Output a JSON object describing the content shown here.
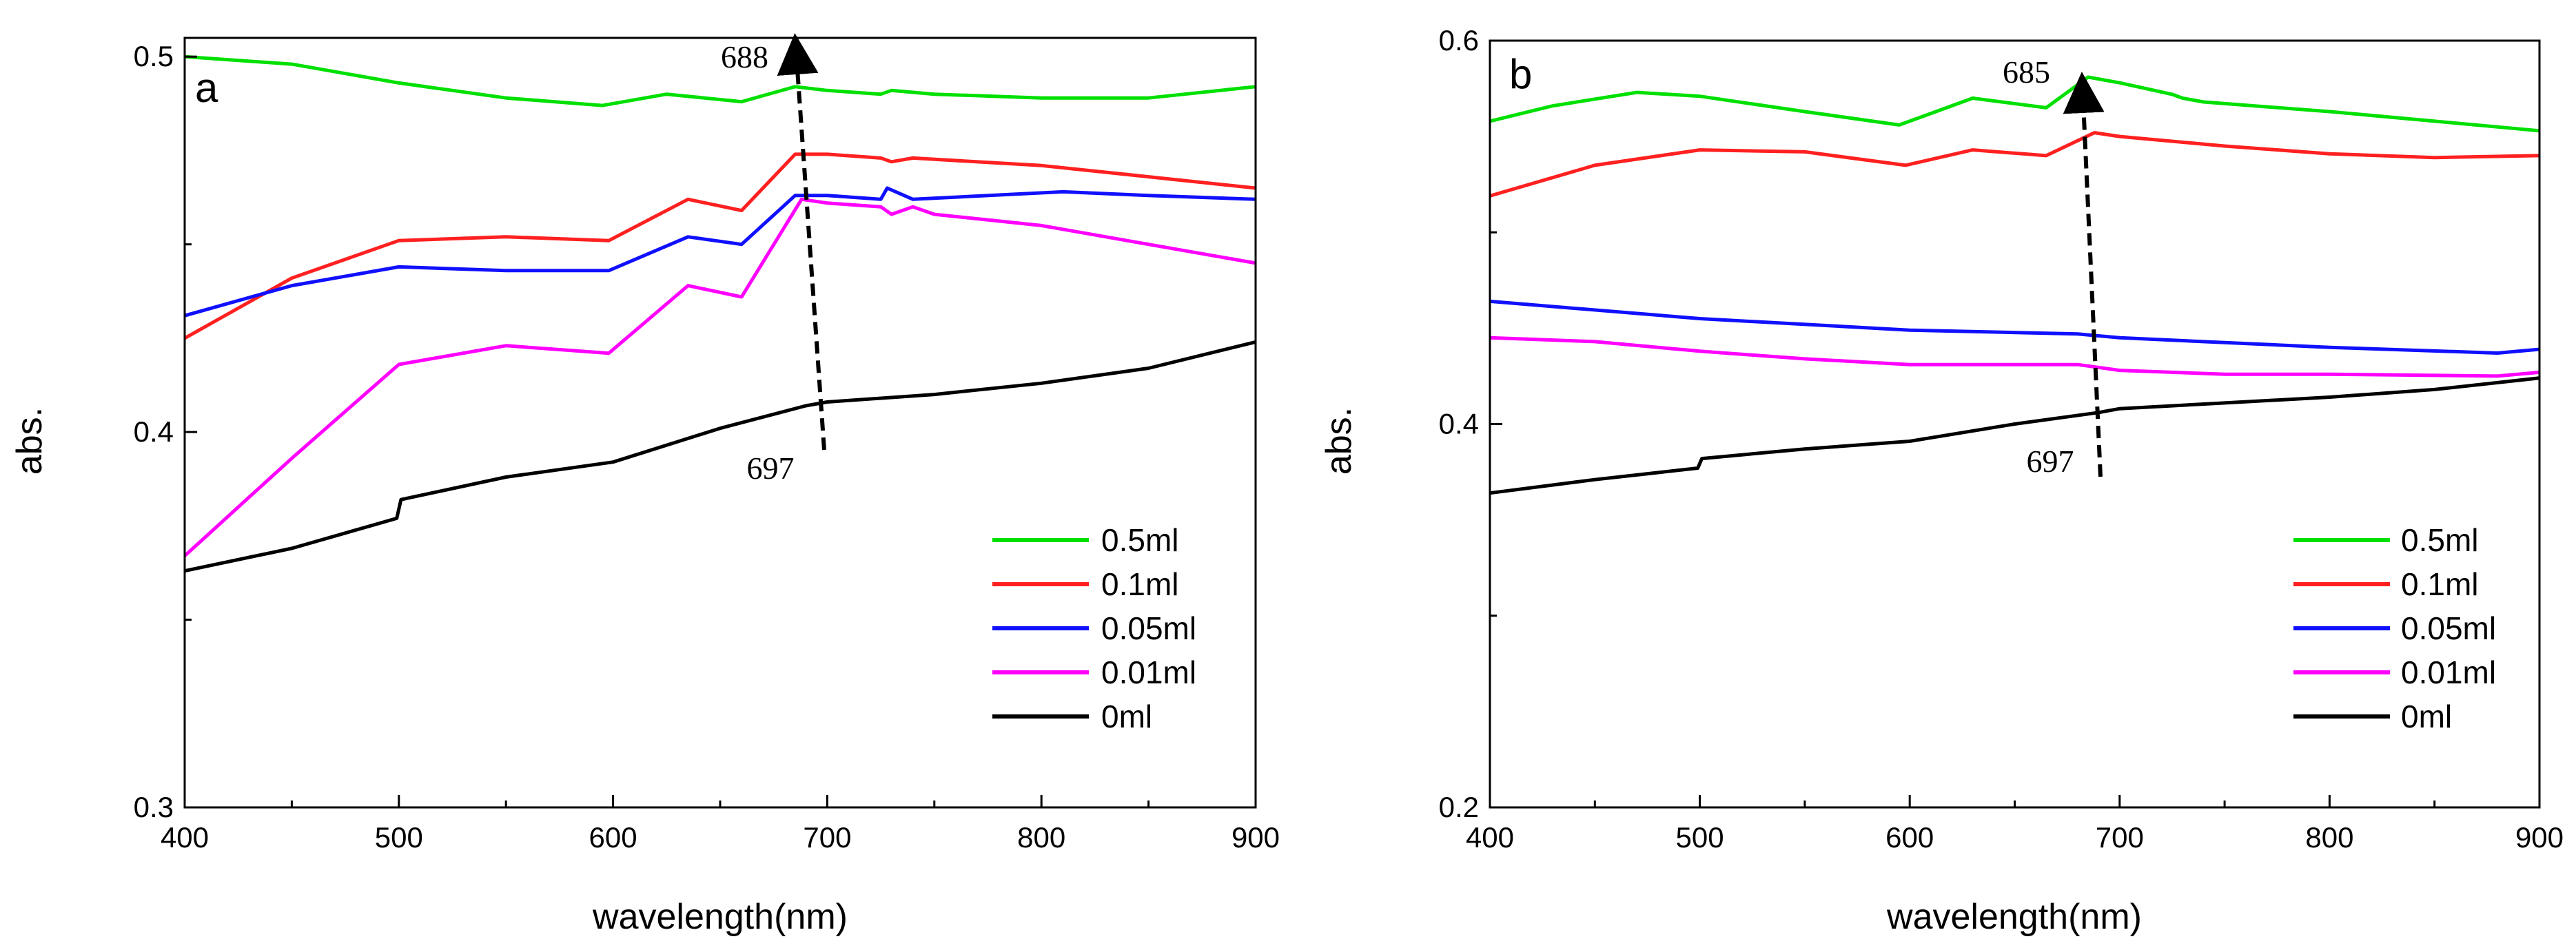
{
  "chart_data": [
    {
      "type": "line",
      "panel_label": "a",
      "xlabel": "wavelength(nm)",
      "ylabel": "abs.",
      "xlim": [
        400,
        900
      ],
      "ylim": [
        0.3,
        0.505
      ],
      "x_ticks": [
        400,
        500,
        600,
        700,
        800,
        900
      ],
      "y_ticks": [
        0.3,
        0.4,
        0.5
      ],
      "y_tick_labels": [
        "0.3",
        "0.4",
        "0.5"
      ],
      "legend_position": "bottom-right",
      "series": [
        {
          "name": "0.5ml",
          "color": "#00e000",
          "x": [
            400,
            450,
            500,
            550,
            595,
            625,
            660,
            685,
            700,
            725,
            730,
            750,
            800,
            850,
            900
          ],
          "y": [
            0.5,
            0.498,
            0.493,
            0.489,
            0.487,
            0.49,
            0.488,
            0.492,
            0.491,
            0.49,
            0.491,
            0.49,
            0.489,
            0.489,
            0.492
          ]
        },
        {
          "name": "0.1ml",
          "color": "#ff2020",
          "x": [
            400,
            450,
            500,
            550,
            598,
            635,
            660,
            685,
            700,
            725,
            730,
            740,
            800,
            850,
            900
          ],
          "y": [
            0.425,
            0.441,
            0.451,
            0.452,
            0.451,
            0.462,
            0.459,
            0.474,
            0.474,
            0.473,
            0.472,
            0.473,
            0.471,
            0.468,
            0.465
          ]
        },
        {
          "name": "0.05ml",
          "color": "#1010ff",
          "x": [
            400,
            450,
            500,
            550,
            598,
            635,
            660,
            685,
            700,
            725,
            728,
            740,
            810,
            850,
            900
          ],
          "y": [
            0.431,
            0.439,
            0.444,
            0.443,
            0.443,
            0.452,
            0.45,
            0.463,
            0.463,
            0.462,
            0.465,
            0.462,
            0.464,
            0.463,
            0.462
          ]
        },
        {
          "name": "0.01ml",
          "color": "#ff00ff",
          "x": [
            400,
            450,
            500,
            550,
            598,
            635,
            660,
            688,
            700,
            725,
            730,
            740,
            750,
            800,
            850,
            900
          ],
          "y": [
            0.367,
            0.393,
            0.418,
            0.423,
            0.421,
            0.439,
            0.436,
            0.462,
            0.461,
            0.46,
            0.458,
            0.46,
            0.458,
            0.455,
            0.45,
            0.445
          ]
        },
        {
          "name": "0ml",
          "color": "#000000",
          "x": [
            400,
            450,
            499,
            501,
            550,
            600,
            650,
            690,
            700,
            750,
            800,
            850,
            900
          ],
          "y": [
            0.363,
            0.369,
            0.377,
            0.382,
            0.388,
            0.392,
            0.401,
            0.407,
            0.408,
            0.41,
            0.413,
            0.417,
            0.424
          ]
        }
      ],
      "annotations": [
        {
          "text": "688",
          "x": 684,
          "y": 0.5,
          "role": "peak-label"
        },
        {
          "text": "697",
          "x": 697,
          "y": 0.391,
          "role": "peak-label"
        }
      ],
      "arrow": {
        "from": [
          698,
          0.395
        ],
        "to": [
          686,
          0.5
        ]
      }
    },
    {
      "type": "line",
      "panel_label": "b",
      "xlabel": "wavelength(nm)",
      "ylabel": "abs.",
      "xlim": [
        400,
        900
      ],
      "ylim": [
        0.2,
        0.6
      ],
      "x_ticks": [
        400,
        500,
        600,
        700,
        800,
        900
      ],
      "y_ticks": [
        0.2,
        0.4,
        0.6
      ],
      "y_tick_labels": [
        "0.2",
        "0.4",
        "0.6"
      ],
      "legend_position": "bottom-right",
      "series": [
        {
          "name": "0.5ml",
          "color": "#00e000",
          "x": [
            400,
            430,
            470,
            500,
            550,
            595,
            630,
            665,
            685,
            700,
            725,
            730,
            740,
            800,
            850,
            900
          ],
          "y": [
            0.558,
            0.566,
            0.573,
            0.571,
            0.563,
            0.556,
            0.57,
            0.565,
            0.581,
            0.578,
            0.572,
            0.57,
            0.568,
            0.563,
            0.558,
            0.553
          ]
        },
        {
          "name": "0.1ml",
          "color": "#ff2020",
          "x": [
            400,
            450,
            500,
            550,
            598,
            630,
            665,
            688,
            700,
            750,
            800,
            850,
            900
          ],
          "y": [
            0.519,
            0.535,
            0.543,
            0.542,
            0.535,
            0.543,
            0.54,
            0.552,
            0.55,
            0.545,
            0.541,
            0.539,
            0.54
          ]
        },
        {
          "name": "0.05ml",
          "color": "#1010ff",
          "x": [
            400,
            500,
            600,
            680,
            700,
            800,
            880,
            900
          ],
          "y": [
            0.464,
            0.455,
            0.449,
            0.447,
            0.445,
            0.44,
            0.437,
            0.439
          ]
        },
        {
          "name": "0.01ml",
          "color": "#ff00ff",
          "x": [
            400,
            450,
            500,
            550,
            600,
            680,
            700,
            750,
            800,
            880,
            900
          ],
          "y": [
            0.445,
            0.443,
            0.438,
            0.434,
            0.431,
            0.431,
            0.428,
            0.426,
            0.426,
            0.425,
            0.427
          ]
        },
        {
          "name": "0ml",
          "color": "#000000",
          "x": [
            400,
            450,
            499,
            501,
            550,
            600,
            650,
            690,
            700,
            750,
            800,
            850,
            900
          ],
          "y": [
            0.364,
            0.371,
            0.377,
            0.382,
            0.387,
            0.391,
            0.4,
            0.406,
            0.408,
            0.411,
            0.414,
            0.418,
            0.424
          ]
        }
      ],
      "annotations": [
        {
          "text": "685",
          "x": 671,
          "y": 0.582,
          "role": "peak-label"
        },
        {
          "text": "697",
          "x": 671,
          "y": 0.384,
          "role": "peak-label"
        }
      ],
      "arrow": {
        "from": [
          690,
          0.393
        ],
        "to": [
          679,
          0.6
        ]
      }
    }
  ]
}
